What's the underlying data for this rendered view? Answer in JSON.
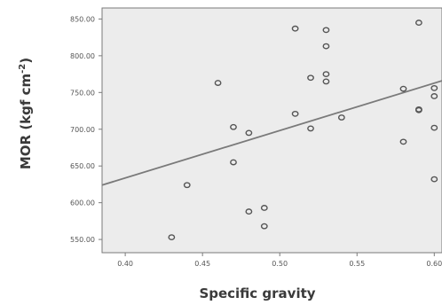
{
  "chart_data": {
    "type": "scatter",
    "xlabel": "Specific gravity",
    "ylabel_main": "MOR (kgf cm",
    "ylabel_sup": "-2",
    "ylabel_close": ")",
    "xlim": [
      0.385,
      0.605
    ],
    "ylim": [
      532,
      865
    ],
    "x_ticks": [
      0.4,
      0.45,
      0.5,
      0.55,
      0.6
    ],
    "x_tick_labels": [
      "0.40",
      "0.45",
      "0.50",
      "0.55",
      "0.60"
    ],
    "y_ticks": [
      550,
      600,
      650,
      700,
      750,
      800,
      850
    ],
    "y_tick_labels": [
      "550.00",
      "600.00",
      "650.00",
      "700.00",
      "750.00",
      "800.00",
      "850.00"
    ],
    "points": [
      {
        "x": 0.43,
        "y": 553
      },
      {
        "x": 0.44,
        "y": 624
      },
      {
        "x": 0.46,
        "y": 763
      },
      {
        "x": 0.47,
        "y": 703
      },
      {
        "x": 0.47,
        "y": 655
      },
      {
        "x": 0.48,
        "y": 695
      },
      {
        "x": 0.48,
        "y": 588
      },
      {
        "x": 0.49,
        "y": 593
      },
      {
        "x": 0.49,
        "y": 568
      },
      {
        "x": 0.51,
        "y": 837
      },
      {
        "x": 0.51,
        "y": 721
      },
      {
        "x": 0.52,
        "y": 770
      },
      {
        "x": 0.52,
        "y": 701
      },
      {
        "x": 0.53,
        "y": 835
      },
      {
        "x": 0.53,
        "y": 813
      },
      {
        "x": 0.53,
        "y": 775
      },
      {
        "x": 0.53,
        "y": 765
      },
      {
        "x": 0.54,
        "y": 716
      },
      {
        "x": 0.58,
        "y": 755
      },
      {
        "x": 0.58,
        "y": 683
      },
      {
        "x": 0.59,
        "y": 845
      },
      {
        "x": 0.59,
        "y": 727
      },
      {
        "x": 0.59,
        "y": 726
      },
      {
        "x": 0.6,
        "y": 756
      },
      {
        "x": 0.6,
        "y": 745
      },
      {
        "x": 0.6,
        "y": 702
      },
      {
        "x": 0.6,
        "y": 632
      }
    ],
    "fit_line": {
      "x": [
        0.385,
        0.605
      ],
      "y": [
        624,
        766
      ]
    },
    "grid": false
  }
}
